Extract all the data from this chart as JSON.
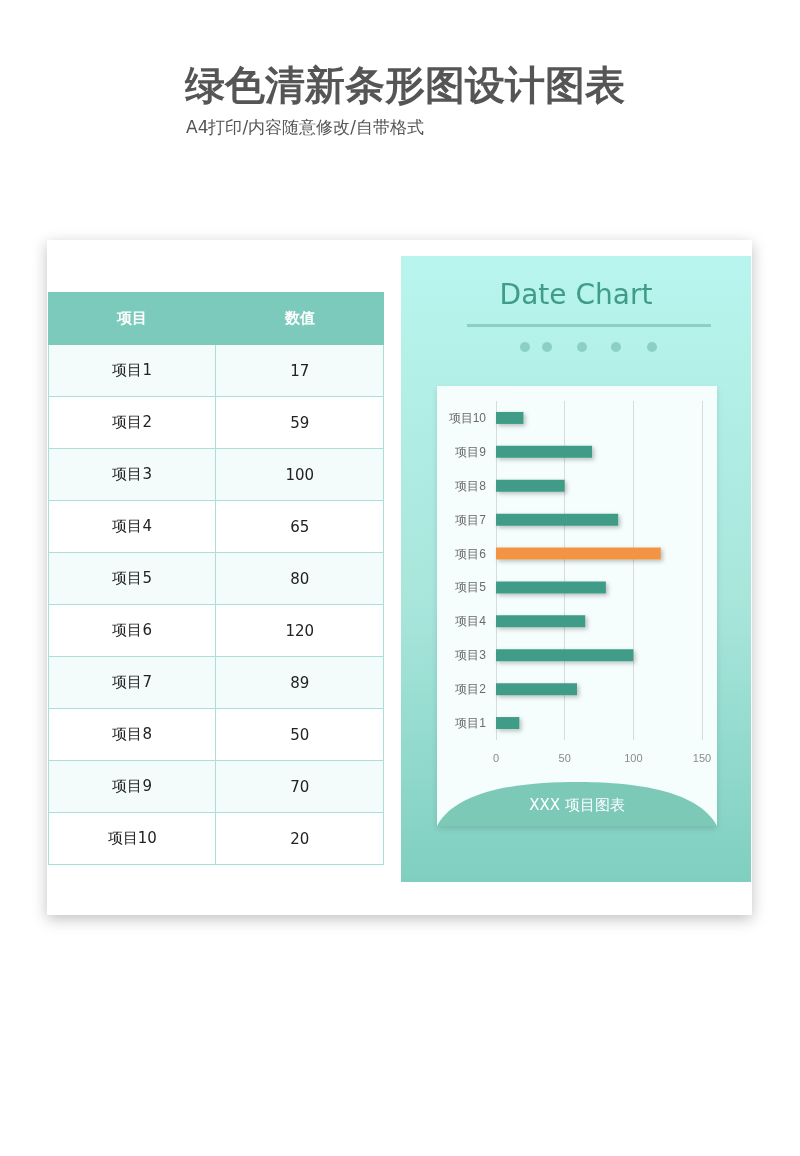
{
  "chart_data": [
    {
      "type": "other",
      "annotations": [
        "项目",
        "数值",
        "项目1",
        "17",
        "项目2",
        "59",
        "项目3",
        "100",
        "项目4",
        "65",
        "项目5",
        "80",
        "项目6",
        "120",
        "项目7",
        "89",
        "项目8",
        "50",
        "项目9",
        "70",
        "项目10",
        "20"
      ]
    },
    {
      "type": "bar",
      "orientation": "horizontal",
      "title": "绿色清新条形图设计图表",
      "subtitle": "A4打印/内容随意修改/自带格式",
      "annotations": [
        "Date Chart",
        "XXX 项目图表"
      ],
      "categories": [
        "项目10",
        "项目9",
        "项目8",
        "项目7",
        "项目6",
        "项目5",
        "项目4",
        "项目3",
        "项目2",
        "项目1"
      ],
      "values": [
        20,
        70,
        50,
        89,
        120,
        80,
        65,
        100,
        59,
        17
      ],
      "colors": [
        "#3f9c87",
        "#3f9c87",
        "#3f9c87",
        "#3f9c87",
        "#f39445",
        "#3f9c87",
        "#3f9c87",
        "#3f9c87",
        "#3f9c87",
        "#3f9c87"
      ],
      "xlim": [
        0,
        150
      ],
      "xticks": [
        0,
        50,
        100,
        150
      ],
      "grid": "x"
    }
  ]
}
